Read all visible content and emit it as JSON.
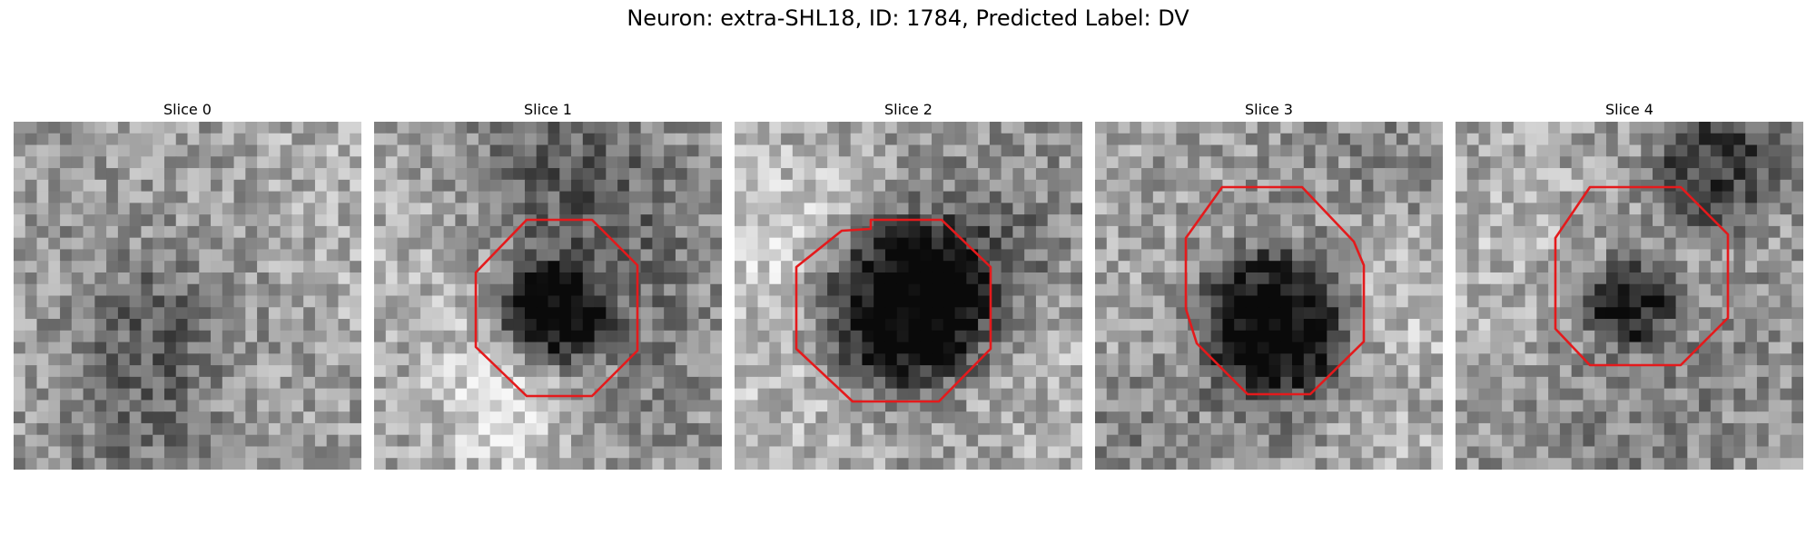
{
  "figure": {
    "title": "Neuron: extra-SHL18, ID: 1784, Predicted Label: DV"
  },
  "panels": [
    {
      "title": "Slice 0",
      "has_contour": false
    },
    {
      "title": "Slice 1",
      "has_contour": true
    },
    {
      "title": "Slice 2",
      "has_contour": true
    },
    {
      "title": "Slice 3",
      "has_contour": true
    },
    {
      "title": "Slice 4",
      "has_contour": true
    }
  ],
  "colors": {
    "contour": "#e41a1c",
    "background": "#ffffff"
  }
}
